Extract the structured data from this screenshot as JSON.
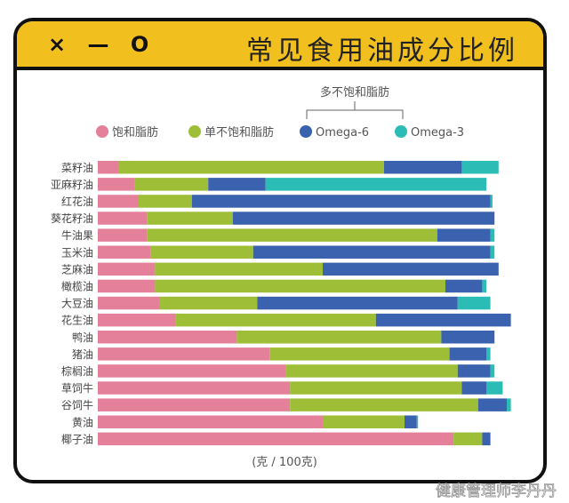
{
  "header": {
    "window_controls": "× — O",
    "title": "常见食用油成分比例"
  },
  "watermark": "健康管理师李丹丹",
  "chart_data": {
    "type": "bar",
    "orientation": "horizontal",
    "stacked": true,
    "title": "常见食用油成分比例",
    "xlabel": "(克 / 100克)",
    "xlim": [
      0,
      100
    ],
    "grid": false,
    "legend_placement": "top",
    "legend_group_label": "多不饱和脂肪",
    "categories": [
      "菜籽油",
      "亚麻籽油",
      "红花油",
      "葵花籽油",
      "牛油果",
      "玉米油",
      "芝麻油",
      "橄榄油",
      "大豆油",
      "花生油",
      "鸭油",
      "猪油",
      "棕榈油",
      "草饲牛",
      "谷饲牛",
      "黄油",
      "椰子油"
    ],
    "series": [
      {
        "name": "饱和脂肪",
        "color": "#E4809A",
        "values": [
          5,
          9,
          10,
          12,
          12,
          13,
          14,
          14,
          15,
          19,
          34,
          42,
          46,
          47,
          47,
          55,
          87
        ]
      },
      {
        "name": "单不饱和脂肪",
        "color": "#9DBE36",
        "values": [
          65,
          18,
          13,
          21,
          71,
          25,
          41,
          71,
          24,
          49,
          50,
          44,
          42,
          42,
          46,
          20,
          7
        ]
      },
      {
        "name": "Omega-6",
        "color": "#3A62AE",
        "values": [
          19,
          14,
          73,
          64,
          13,
          58,
          43,
          9,
          49,
          33,
          13,
          9,
          8,
          6,
          7,
          3,
          2
        ]
      },
      {
        "name": "Omega-3",
        "color": "#2BBDB5",
        "values": [
          9,
          54,
          0.5,
          0,
          1,
          1,
          0,
          1,
          8,
          0,
          0,
          1,
          1,
          4,
          1,
          0.3,
          0
        ]
      }
    ]
  }
}
